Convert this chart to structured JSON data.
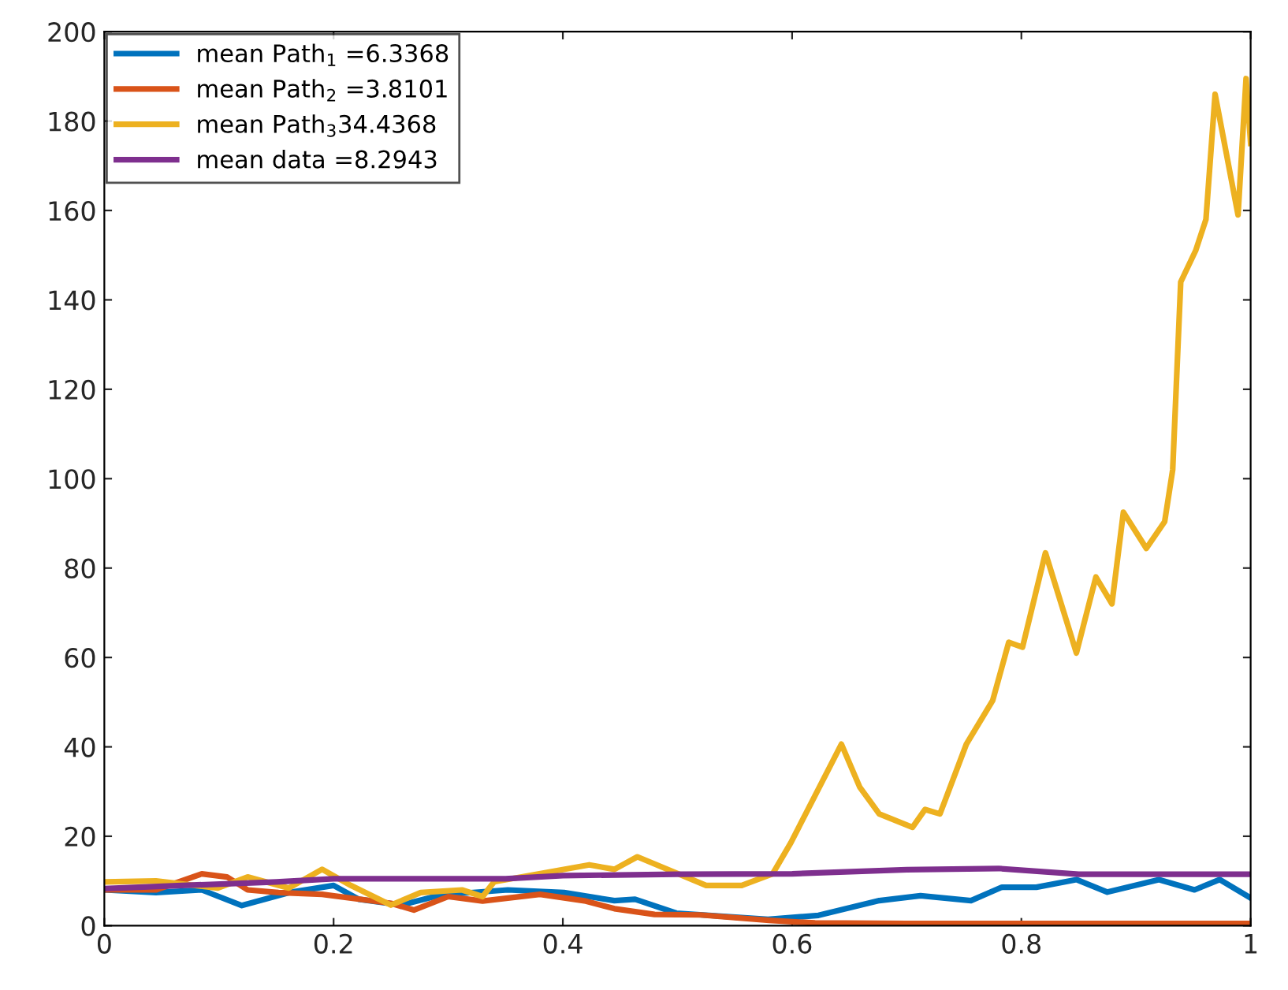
{
  "chart_data": {
    "type": "line",
    "xlim": [
      0,
      1
    ],
    "xticks": [
      0,
      0.2,
      0.4,
      0.6,
      0.8,
      1
    ],
    "ylim": [
      0,
      200
    ],
    "yticks": [
      0,
      20,
      40,
      60,
      80,
      100,
      120,
      140,
      160,
      180,
      200
    ],
    "grid": false,
    "legend": "top left",
    "marker": "none",
    "line_style": "solid",
    "series": [
      {
        "name": "mean Path$_{1}$ =6.3368",
        "color": "#0072bd",
        "x": [
          0,
          0.045,
          0.085,
          0.12,
          0.161,
          0.2,
          0.222,
          0.259,
          0.294,
          0.352,
          0.401,
          0.445,
          0.463,
          0.499,
          0.579,
          0.623,
          0.676,
          0.712,
          0.756,
          0.783,
          0.813,
          0.848,
          0.875,
          0.92,
          0.951,
          0.973,
          1.0
        ],
        "values": [
          8,
          7.4,
          8,
          4.5,
          7.4,
          9,
          5.9,
          4.6,
          6.9,
          8,
          7.4,
          5.6,
          5.9,
          2.8,
          1.4,
          2.3,
          5.6,
          6.7,
          5.6,
          8.6,
          8.6,
          10.3,
          7.5,
          10.3,
          8,
          10.3,
          6.2
        ]
      },
      {
        "name": "mean Path$_{2}$ =3.8101",
        "color": "#d95319",
        "x": [
          0,
          0.045,
          0.085,
          0.107,
          0.125,
          0.152,
          0.19,
          0.25,
          0.27,
          0.3,
          0.33,
          0.38,
          0.42,
          0.445,
          0.48,
          0.52,
          0.58,
          0.62,
          0.7,
          0.8,
          0.9,
          1.0
        ],
        "values": [
          8,
          8,
          11.6,
          10.9,
          8,
          7.4,
          7,
          5,
          3.5,
          6.5,
          5.5,
          7,
          5.5,
          3.8,
          2.5,
          2.4,
          1.2,
          0.6,
          0.5,
          0.5,
          0.5,
          0.5
        ]
      },
      {
        "name": "mean Path$_{3}$34.4368",
        "color": "#edb120",
        "x": [
          0,
          0.045,
          0.099,
          0.125,
          0.161,
          0.19,
          0.215,
          0.25,
          0.276,
          0.312,
          0.33,
          0.34,
          0.423,
          0.445,
          0.465,
          0.525,
          0.556,
          0.583,
          0.599,
          0.643,
          0.659,
          0.676,
          0.705,
          0.716,
          0.729,
          0.752,
          0.775,
          0.789,
          0.801,
          0.821,
          0.848,
          0.865,
          0.879,
          0.889,
          0.909,
          0.925,
          0.932,
          0.939,
          0.952,
          0.961,
          0.969,
          0.989,
          0.996,
          1.0
        ],
        "values": [
          9.8,
          10,
          8.4,
          10.9,
          8.4,
          12.6,
          9,
          4.6,
          7.4,
          8,
          6.5,
          9.8,
          13.6,
          12.6,
          15.4,
          9,
          9,
          11.6,
          18.6,
          40.6,
          31,
          25,
          22,
          26,
          25,
          40.6,
          50.4,
          63.4,
          62.3,
          83.4,
          61,
          78,
          72,
          92.5,
          84.4,
          90.4,
          102,
          144,
          151,
          158,
          186,
          159,
          189.5,
          175
        ]
      },
      {
        "name": "mean data =8.2943",
        "color": "#7e2f8e",
        "x": [
          0,
          0.15,
          0.2,
          0.3,
          0.35,
          0.4,
          0.5,
          0.6,
          0.7,
          0.78,
          0.85,
          1.0
        ],
        "values": [
          8.3,
          9.8,
          10.5,
          10.5,
          10.5,
          11.2,
          11.5,
          11.6,
          12.5,
          12.8,
          11.5,
          11.5
        ]
      }
    ]
  }
}
